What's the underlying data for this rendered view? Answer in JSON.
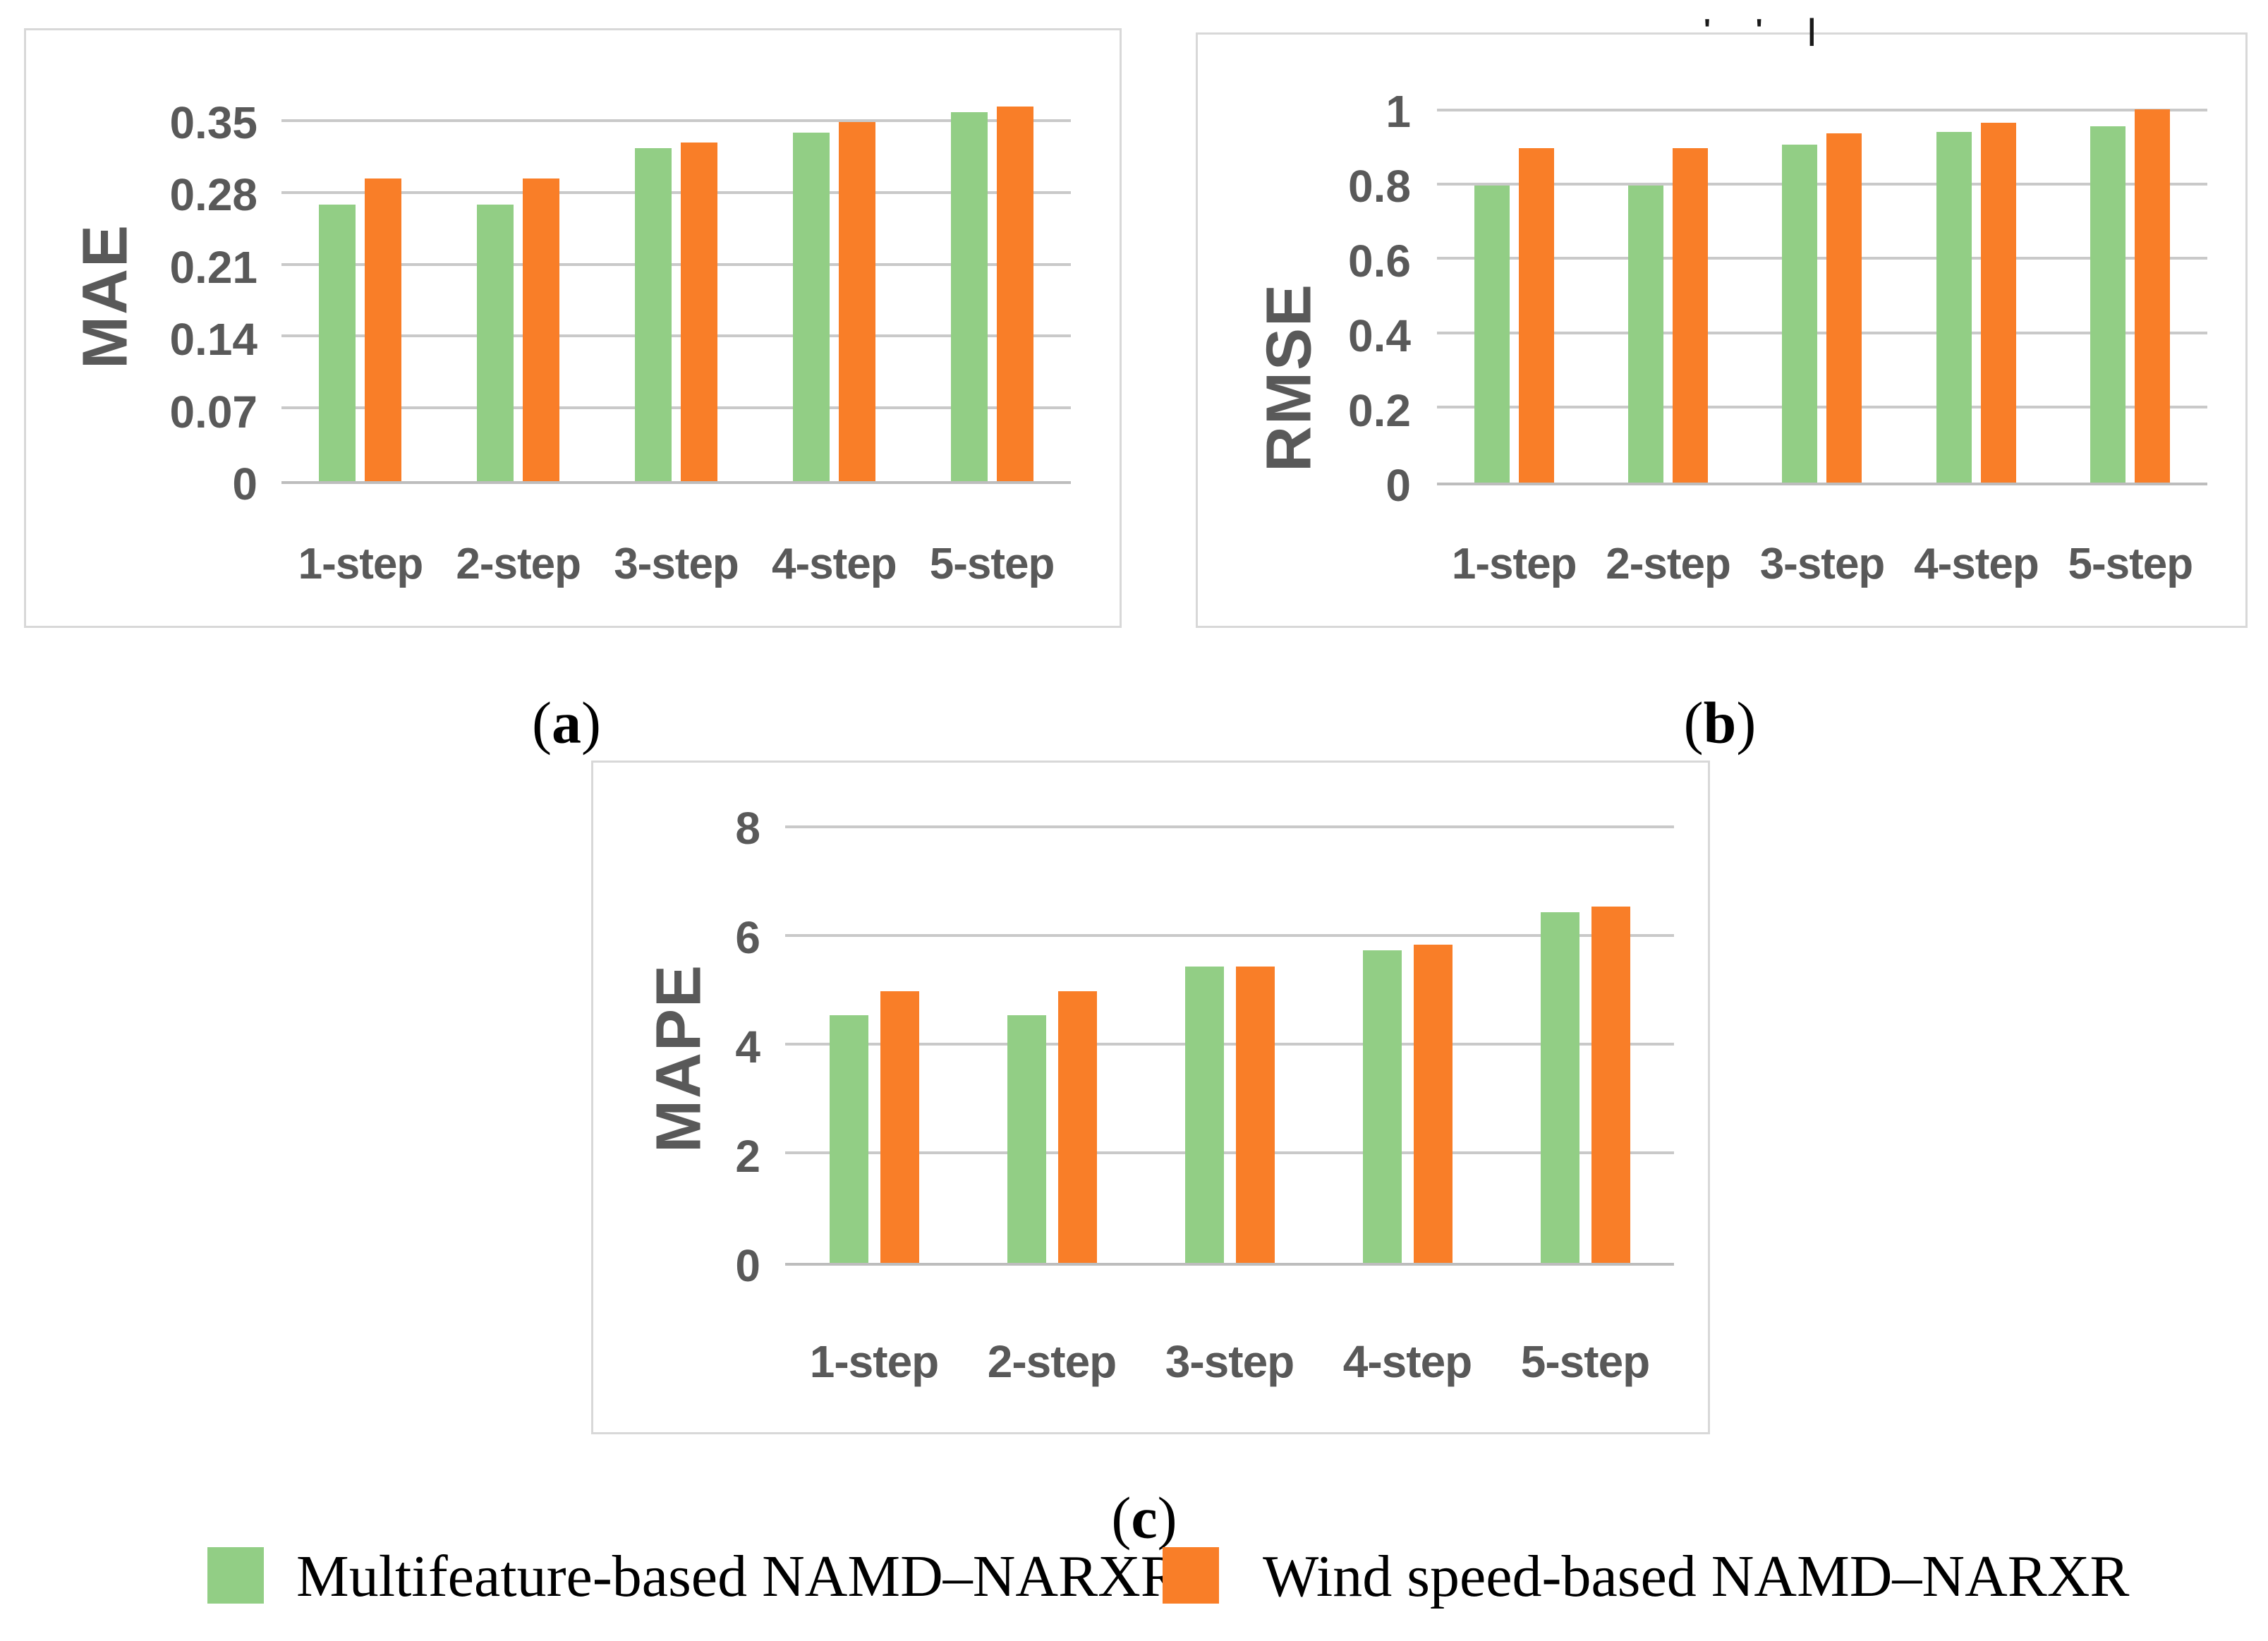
{
  "figure": {
    "sublabels": {
      "open": "(",
      "close": ")",
      "a": "a",
      "b": "b",
      "c": "c"
    },
    "top_artifact": "' ' |",
    "legend": {
      "items": [
        {
          "series": "multifeature",
          "label": "Multifeature-based NAMD–NARXR"
        },
        {
          "series": "windspeed",
          "label": "Wind speed-based NAMD–NARXR"
        }
      ]
    },
    "colors": {
      "multifeature": "#92CE85",
      "windspeed": "#F97E28",
      "grid": "#C9C9C9",
      "baseline": "#BDBDBD",
      "axis_text": "#595959",
      "panel_border": "#D8D8D8",
      "caption_text": "#000000"
    }
  },
  "chart_data": [
    {
      "id": "mae",
      "type": "bar",
      "title": "",
      "xlabel": "",
      "ylabel": "MAE",
      "categories": [
        "1-step",
        "2-step",
        "3-step",
        "4-step",
        "5-step"
      ],
      "yticks": [
        0,
        0.07,
        0.14,
        0.21,
        0.28,
        0.35
      ],
      "ytick_labels": [
        "0",
        "0.07",
        "0.14",
        "0.21",
        "0.28",
        "0.35"
      ],
      "ylim": [
        0,
        0.35
      ],
      "grid": true,
      "legend_position": "bottom-shared",
      "series": [
        {
          "name": "Multifeature-based NAMD–NARXR",
          "values": [
            0.27,
            0.27,
            0.325,
            0.34,
            0.36
          ]
        },
        {
          "name": "Wind speed-based NAMD–NARXR",
          "values": [
            0.295,
            0.295,
            0.33,
            0.35,
            0.365
          ]
        }
      ]
    },
    {
      "id": "rmse",
      "type": "bar",
      "title": "",
      "xlabel": "",
      "ylabel": "RMSE",
      "categories": [
        "1-step",
        "2-step",
        "3-step",
        "4-step",
        "5-step"
      ],
      "yticks": [
        0,
        0.2,
        0.4,
        0.6,
        0.8,
        1
      ],
      "ytick_labels": [
        "0",
        "0.2",
        "0.4",
        "0.6",
        "0.8",
        "1"
      ],
      "ylim": [
        0,
        1
      ],
      "grid": true,
      "legend_position": "bottom-shared",
      "series": [
        {
          "name": "Multifeature-based NAMD–NARXR",
          "values": [
            0.8,
            0.8,
            0.91,
            0.945,
            0.96
          ]
        },
        {
          "name": "Wind speed-based NAMD–NARXR",
          "values": [
            0.9,
            0.9,
            0.94,
            0.97,
            1.005
          ]
        }
      ]
    },
    {
      "id": "mape",
      "type": "bar",
      "title": "",
      "xlabel": "",
      "ylabel": "MAPE",
      "categories": [
        "1-step",
        "2-step",
        "3-step",
        "4-step",
        "5-step"
      ],
      "yticks": [
        0,
        2,
        4,
        6,
        8
      ],
      "ytick_labels": [
        "0",
        "2",
        "4",
        "6",
        "8"
      ],
      "ylim": [
        0,
        8
      ],
      "grid": true,
      "legend_position": "bottom-shared",
      "series": [
        {
          "name": "Multifeature-based NAMD–NARXR",
          "values": [
            4.55,
            4.55,
            5.45,
            5.75,
            6.45
          ]
        },
        {
          "name": "Wind speed-based NAMD–NARXR",
          "values": [
            5.0,
            5.0,
            5.45,
            5.85,
            6.55
          ]
        }
      ]
    }
  ]
}
